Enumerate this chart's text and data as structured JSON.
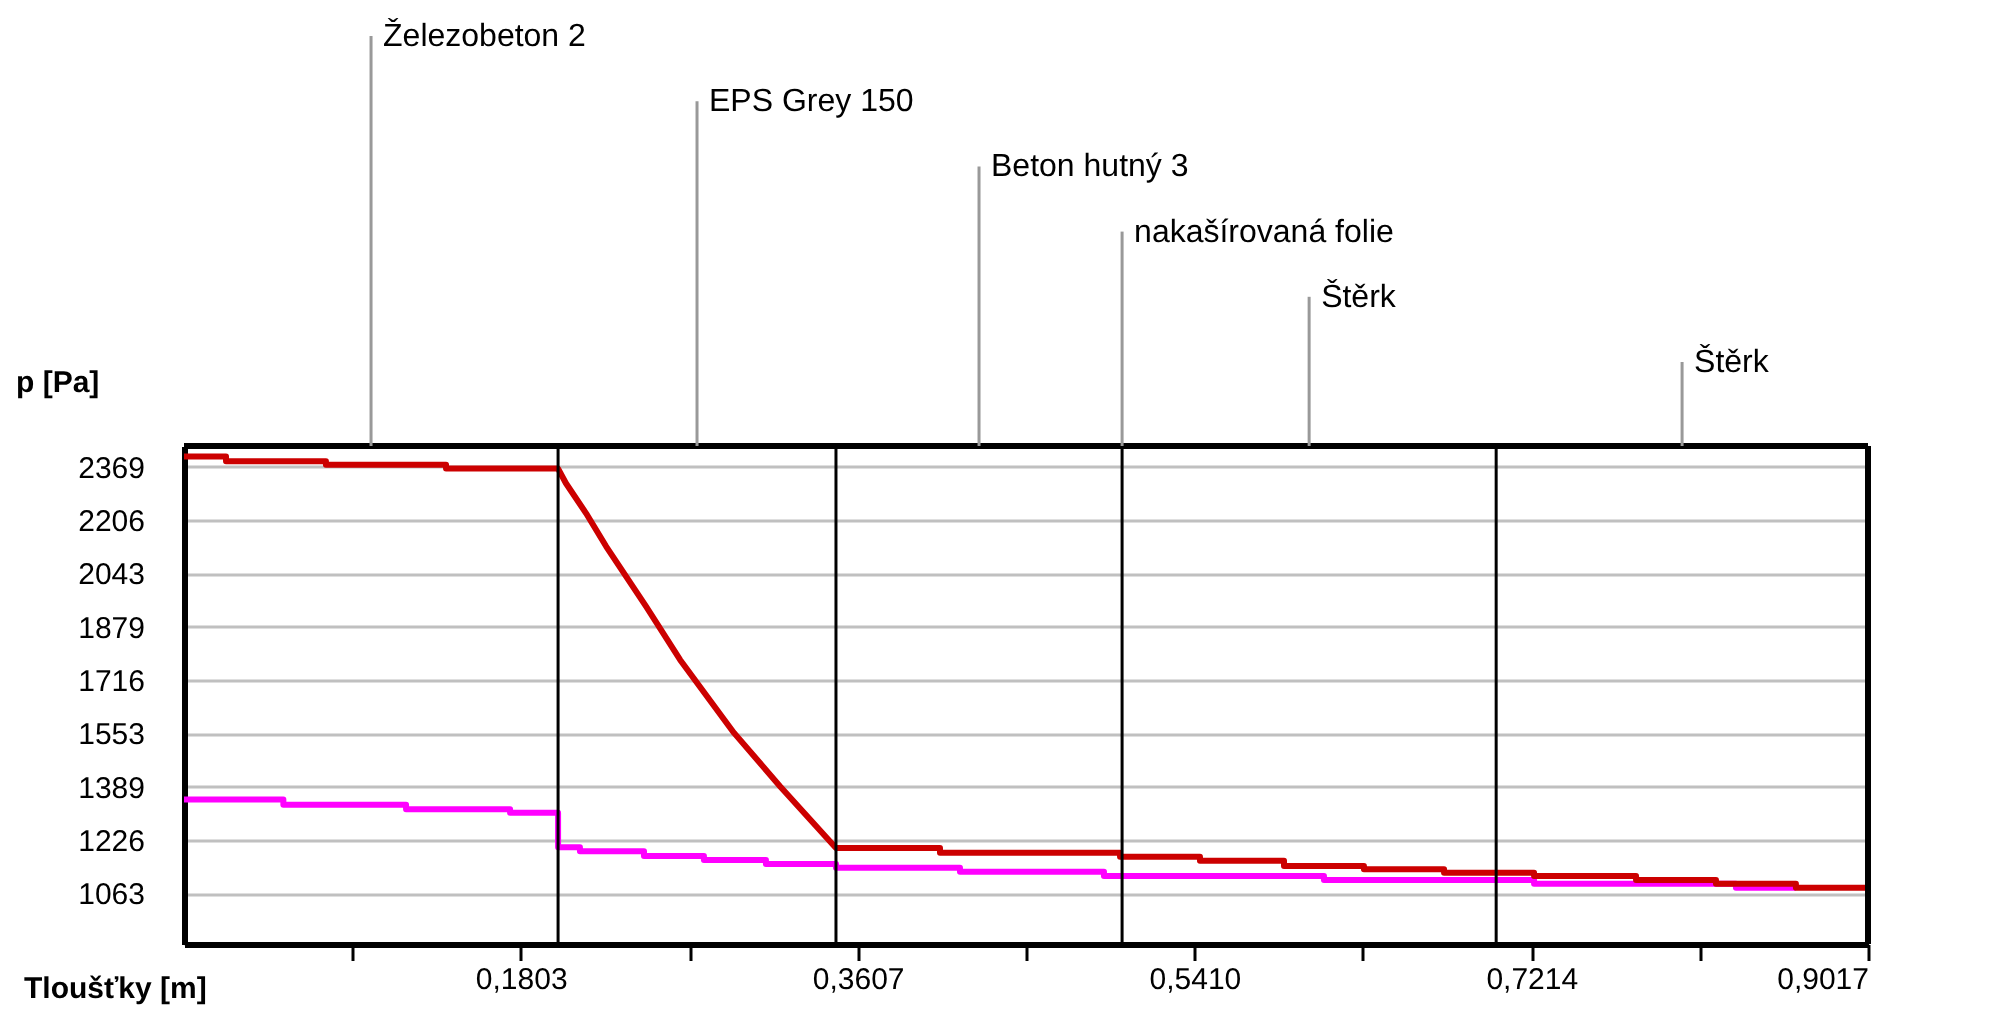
{
  "chart_data": {
    "type": "line",
    "xlabel": "Tloušťky [m]",
    "ylabel": "p [Pa]",
    "xlim": [
      0,
      0.9017
    ],
    "ylim": [
      908,
      2432
    ],
    "xticks": [
      {
        "value": 0.0902,
        "label": null
      },
      {
        "value": 0.1803,
        "label": "0,1803"
      },
      {
        "value": 0.2705,
        "label": null
      },
      {
        "value": 0.3607,
        "label": "0,3607"
      },
      {
        "value": 0.4508,
        "label": null
      },
      {
        "value": 0.541,
        "label": "0,5410"
      },
      {
        "value": 0.6312,
        "label": null
      },
      {
        "value": 0.7214,
        "label": "0,7214"
      },
      {
        "value": 0.8115,
        "label": null
      },
      {
        "value": 0.9017,
        "label": "0,9017"
      }
    ],
    "yticks": [
      1063,
      1226,
      1389,
      1553,
      1716,
      1879,
      2043,
      2206,
      2369
    ],
    "grid": "y",
    "series": [
      {
        "color": "#ff00ff",
        "x": [
          0,
          0.0532,
          0.0532,
          0.1189,
          0.1189,
          0.1746,
          0.1746,
          0.2003,
          0.2003,
          0.212,
          0.212,
          0.2463,
          0.2463,
          0.2784,
          0.2784,
          0.3116,
          0.3116,
          0.3491,
          0.3491,
          0.4155,
          0.4155,
          0.4926,
          0.4926,
          0.6104,
          0.6104,
          0.7229,
          0.7229,
          0.831,
          0.831,
          0.8631
        ],
        "values": [
          1350,
          1350,
          1334,
          1334,
          1320,
          1320,
          1310,
          1310,
          1204,
          1204,
          1192,
          1192,
          1177,
          1177,
          1165,
          1165,
          1153,
          1153,
          1141,
          1141,
          1129,
          1129,
          1116,
          1116,
          1104,
          1104,
          1092,
          1092,
          1080,
          1080
        ]
      },
      {
        "color": "#cc0000",
        "x": [
          0,
          0.0225,
          0.0225,
          0.076,
          0.076,
          0.1403,
          0.1403,
          0.2003,
          0.2045,
          0.2153,
          0.226,
          0.2474,
          0.2656,
          0.2945,
          0.3191,
          0.3491,
          0.4048,
          0.4048,
          0.5012,
          0.5012,
          0.544,
          0.544,
          0.589,
          0.589,
          0.6318,
          0.6318,
          0.6747,
          0.6747,
          0.7229,
          0.7229,
          0.7775,
          0.7775,
          0.8203,
          0.8203,
          0.8631,
          0.8631,
          0.9017
        ],
        "values": [
          2400,
          2400,
          2385,
          2385,
          2375,
          2375,
          2363,
          2363,
          2318,
          2226,
          2125,
          1941,
          1778,
          1554,
          1391,
          1202,
          1202,
          1187,
          1187,
          1175,
          1175,
          1163,
          1163,
          1147,
          1147,
          1137,
          1137,
          1126,
          1126,
          1116,
          1116,
          1104,
          1104,
          1092,
          1092,
          1080,
          1080
        ]
      }
    ],
    "ref_lines": [
      {
        "axis": "x",
        "value": 0.2003,
        "color": "#000000"
      },
      {
        "axis": "x",
        "value": 0.3491,
        "color": "#000000"
      },
      {
        "axis": "x",
        "value": 0.5023,
        "color": "#000000",
        "label": "nakašírovaná folie"
      },
      {
        "axis": "x",
        "value": 0.7026,
        "color": "#000000"
      }
    ],
    "annotations": [
      "Železobeton 2",
      "EPS Grey 150",
      "Beton hutný 3",
      "Štěrk",
      "Štěrk"
    ]
  }
}
